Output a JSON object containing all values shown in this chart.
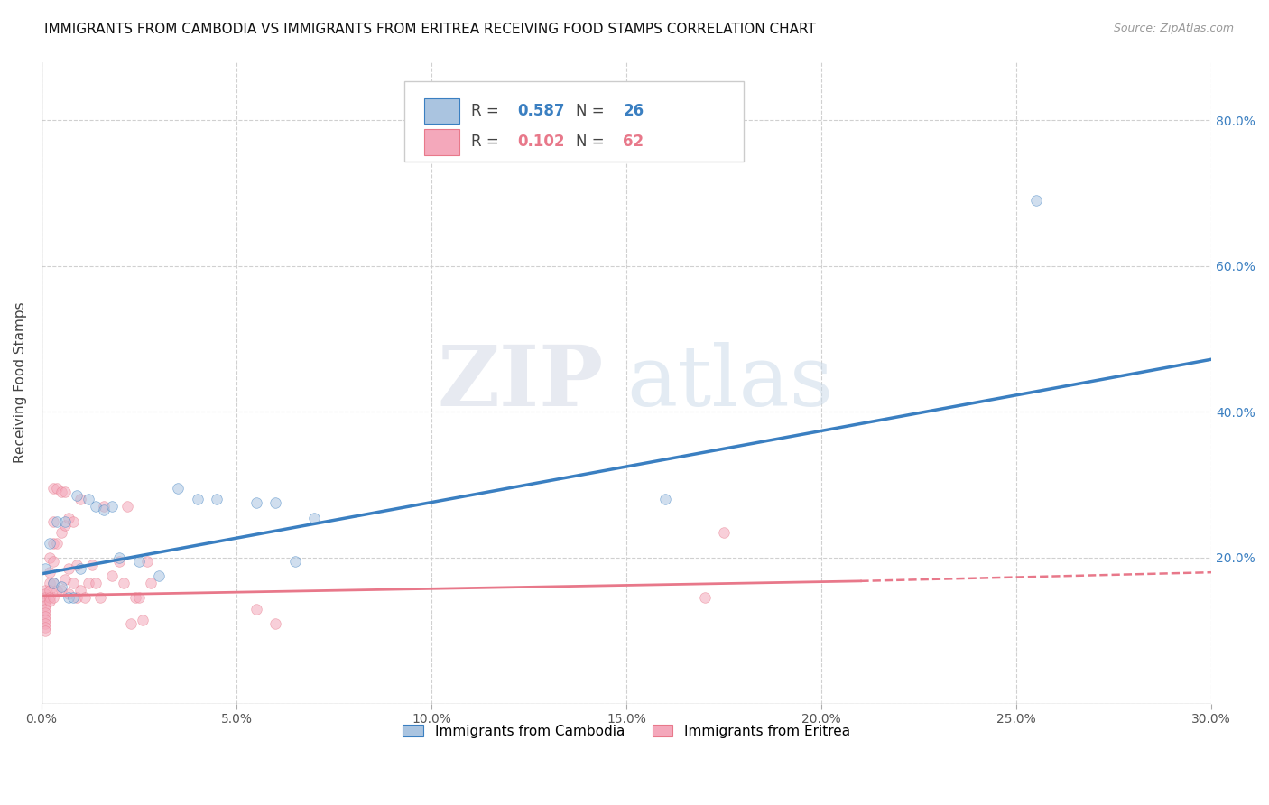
{
  "title": "IMMIGRANTS FROM CAMBODIA VS IMMIGRANTS FROM ERITREA RECEIVING FOOD STAMPS CORRELATION CHART",
  "source": "Source: ZipAtlas.com",
  "ylabel": "Receiving Food Stamps",
  "xlabel_cambodia": "Immigrants from Cambodia",
  "xlabel_eritrea": "Immigrants from Eritrea",
  "xlim": [
    0.0,
    0.3
  ],
  "ylim": [
    0.0,
    0.88
  ],
  "xticks": [
    0.0,
    0.05,
    0.1,
    0.15,
    0.2,
    0.25,
    0.3
  ],
  "yticks": [
    0.0,
    0.2,
    0.4,
    0.6,
    0.8
  ],
  "ytick_right": [
    0.2,
    0.4,
    0.6,
    0.8
  ],
  "legend_r_cambodia": "0.587",
  "legend_n_cambodia": "26",
  "legend_r_eritrea": "0.102",
  "legend_n_eritrea": "62",
  "cambodia_color": "#aac4e0",
  "eritrea_color": "#f4a8bb",
  "trend_cambodia_color": "#3a7fc1",
  "trend_eritrea_color": "#e8788a",
  "watermark_zip": "ZIP",
  "watermark_atlas": "atlas",
  "background_color": "#ffffff",
  "title_fontsize": 11,
  "cambodia_x": [
    0.001,
    0.002,
    0.003,
    0.004,
    0.005,
    0.006,
    0.007,
    0.008,
    0.009,
    0.01,
    0.012,
    0.014,
    0.016,
    0.018,
    0.02,
    0.025,
    0.03,
    0.035,
    0.04,
    0.045,
    0.055,
    0.06,
    0.065,
    0.07,
    0.16,
    0.255
  ],
  "cambodia_y": [
    0.185,
    0.22,
    0.165,
    0.25,
    0.16,
    0.25,
    0.145,
    0.145,
    0.285,
    0.185,
    0.28,
    0.27,
    0.265,
    0.27,
    0.2,
    0.195,
    0.175,
    0.295,
    0.28,
    0.28,
    0.275,
    0.275,
    0.195,
    0.255,
    0.28,
    0.69
  ],
  "eritrea_x": [
    0.001,
    0.001,
    0.001,
    0.001,
    0.001,
    0.001,
    0.001,
    0.001,
    0.001,
    0.001,
    0.001,
    0.001,
    0.002,
    0.002,
    0.002,
    0.002,
    0.002,
    0.002,
    0.003,
    0.003,
    0.003,
    0.003,
    0.003,
    0.003,
    0.004,
    0.004,
    0.004,
    0.005,
    0.005,
    0.005,
    0.006,
    0.006,
    0.006,
    0.007,
    0.007,
    0.007,
    0.008,
    0.008,
    0.009,
    0.009,
    0.01,
    0.01,
    0.011,
    0.012,
    0.013,
    0.014,
    0.015,
    0.016,
    0.018,
    0.02,
    0.021,
    0.022,
    0.023,
    0.024,
    0.025,
    0.026,
    0.027,
    0.028,
    0.055,
    0.06,
    0.17,
    0.175
  ],
  "eritrea_y": [
    0.155,
    0.15,
    0.145,
    0.14,
    0.135,
    0.13,
    0.125,
    0.12,
    0.115,
    0.11,
    0.105,
    0.1,
    0.2,
    0.18,
    0.165,
    0.155,
    0.145,
    0.14,
    0.295,
    0.25,
    0.22,
    0.195,
    0.165,
    0.145,
    0.295,
    0.22,
    0.155,
    0.29,
    0.235,
    0.155,
    0.29,
    0.245,
    0.17,
    0.255,
    0.185,
    0.15,
    0.25,
    0.165,
    0.19,
    0.145,
    0.28,
    0.155,
    0.145,
    0.165,
    0.19,
    0.165,
    0.145,
    0.27,
    0.175,
    0.195,
    0.165,
    0.27,
    0.11,
    0.145,
    0.145,
    0.115,
    0.195,
    0.165,
    0.13,
    0.11,
    0.145,
    0.235
  ],
  "grid_color": "#d0d0d0",
  "marker_size": 70,
  "marker_alpha": 0.55,
  "trend_cambodia_x0": 0.0,
  "trend_cambodia_x1": 0.3,
  "trend_cambodia_y0": 0.178,
  "trend_cambodia_y1": 0.472,
  "trend_eritrea_x0": 0.0,
  "trend_eritrea_x1": 0.21,
  "trend_eritrea_y0": 0.148,
  "trend_eritrea_y1": 0.168,
  "trend_eritrea_dash_x0": 0.21,
  "trend_eritrea_dash_x1": 0.3,
  "trend_eritrea_dash_y0": 0.168,
  "trend_eritrea_dash_y1": 0.18
}
